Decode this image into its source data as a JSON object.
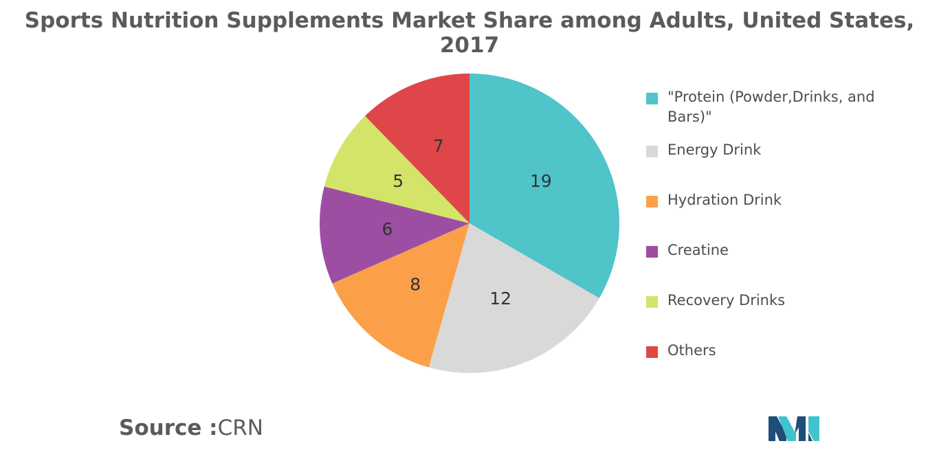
{
  "title": "Sports Nutrition Supplements Market Share among Adults, United States, 2017",
  "source": {
    "label": "Source :",
    "value": "CRN"
  },
  "chart_data": {
    "type": "pie",
    "title": "Sports Nutrition Supplements Market Share among Adults, United States, 2017",
    "legend_position": "right",
    "slices": [
      {
        "label": "\"Protein (Powder,Drinks, and Bars)\"",
        "value": 19,
        "color": "#4fc4c9"
      },
      {
        "label": "Energy Drink",
        "value": 12,
        "color": "#d9d9d9"
      },
      {
        "label": "Hydration Drink",
        "value": 8,
        "color": "#fba049"
      },
      {
        "label": "Creatine",
        "value": 6,
        "color": "#9c4fa2"
      },
      {
        "label": "Recovery Drinks",
        "value": 5,
        "color": "#d4e469"
      },
      {
        "label": "Others",
        "value": 7,
        "color": "#df4649"
      }
    ]
  },
  "logo": {
    "icon": "mordor-intelligence-logo-icon",
    "colors": [
      "#1e4e79",
      "#3fc4cd"
    ]
  }
}
